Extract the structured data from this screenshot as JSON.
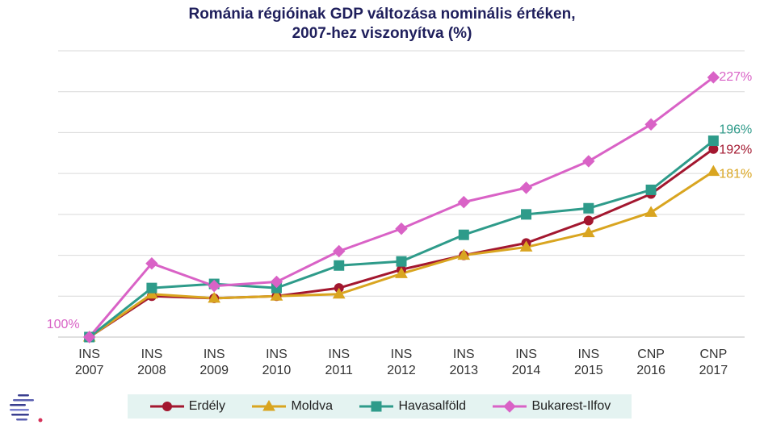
{
  "chart_data": {
    "type": "line",
    "title_lines": [
      "Románia régióinak  GDP változása nominális  értéken,",
      "2007-hez viszonyítva (%)"
    ],
    "categories": [
      [
        "INS",
        "2007"
      ],
      [
        "INS",
        "2008"
      ],
      [
        "INS",
        "2009"
      ],
      [
        "INS",
        "2010"
      ],
      [
        "INS",
        "2011"
      ],
      [
        "INS",
        "2012"
      ],
      [
        "INS",
        "2013"
      ],
      [
        "INS",
        "2014"
      ],
      [
        "INS",
        "2015"
      ],
      [
        "CNP",
        "2016"
      ],
      [
        "CNP",
        "2017"
      ]
    ],
    "start_label": "100%",
    "ylim": [
      100,
      240
    ],
    "grid": true,
    "legend_position": "bottom",
    "series": [
      {
        "name": "Erdély",
        "color": "#a3172f",
        "marker": "circle",
        "values": [
          100,
          120,
          119,
          120,
          124,
          133,
          140,
          146,
          157,
          170,
          192
        ],
        "end_label": "192%"
      },
      {
        "name": "Moldva",
        "color": "#d9a520",
        "marker": "triangle",
        "values": [
          100,
          121,
          119,
          120,
          121,
          131,
          140,
          144,
          151,
          161,
          181
        ],
        "end_label": "181%"
      },
      {
        "name": "Havasalföld",
        "color": "#2e9b8a",
        "marker": "square",
        "values": [
          100,
          124,
          126,
          124,
          135,
          137,
          150,
          160,
          163,
          172,
          196
        ],
        "end_label": "196%"
      },
      {
        "name": "Bukarest-Ilfov",
        "color": "#d962c6",
        "marker": "diamond",
        "values": [
          100,
          136,
          125,
          127,
          142,
          153,
          166,
          173,
          186,
          204,
          227
        ],
        "end_label": "227%"
      }
    ]
  }
}
